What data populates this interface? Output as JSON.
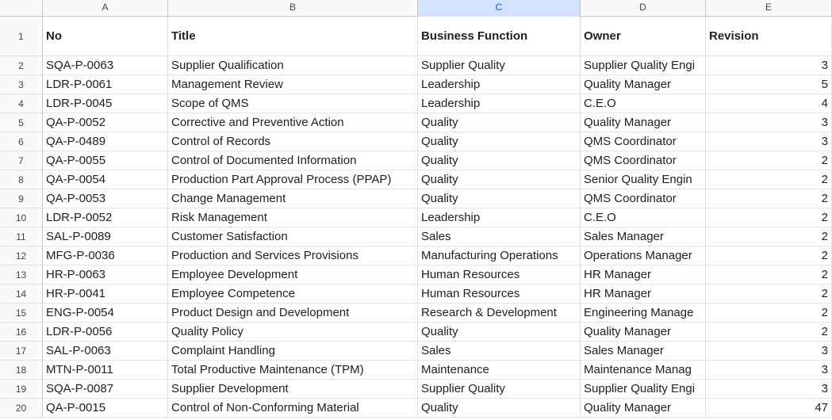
{
  "columns": [
    {
      "letter": "A",
      "selected": false
    },
    {
      "letter": "B",
      "selected": false
    },
    {
      "letter": "C",
      "selected": true
    },
    {
      "letter": "D",
      "selected": false
    },
    {
      "letter": "E",
      "selected": false
    }
  ],
  "header_row": {
    "row": "1",
    "no": "No",
    "title": "Title",
    "function": "Business Function",
    "owner": "Owner",
    "revision": "Revision"
  },
  "rows": [
    {
      "row": "2",
      "no": "SQA-P-0063",
      "title": "Supplier Qualification",
      "function": "Supplier Quality",
      "owner": "Supplier Quality Engi",
      "revision": "3"
    },
    {
      "row": "3",
      "no": "LDR-P-0061",
      "title": "Management Review",
      "function": "Leadership",
      "owner": "Quality Manager",
      "revision": "5"
    },
    {
      "row": "4",
      "no": "LDR-P-0045",
      "title": "Scope of QMS",
      "function": "Leadership",
      "owner": "C.E.O",
      "revision": "4"
    },
    {
      "row": "5",
      "no": "QA-P-0052",
      "title": "Corrective and Preventive Action",
      "function": "Quality",
      "owner": "Quality Manager",
      "revision": "3"
    },
    {
      "row": "6",
      "no": "QA-P-0489",
      "title": "Control of Records",
      "function": "Quality",
      "owner": "QMS Coordinator",
      "revision": "3"
    },
    {
      "row": "7",
      "no": "QA-P-0055",
      "title": "Control of Documented Information",
      "function": "Quality",
      "owner": "QMS Coordinator",
      "revision": "2"
    },
    {
      "row": "8",
      "no": "QA-P-0054",
      "title": "Production Part Approval Process (PPAP)",
      "function": "Quality",
      "owner": "Senior Quality Engin",
      "revision": "2"
    },
    {
      "row": "9",
      "no": "QA-P-0053",
      "title": "Change Management",
      "function": "Quality",
      "owner": "QMS Coordinator",
      "revision": "2"
    },
    {
      "row": "10",
      "no": "LDR-P-0052",
      "title": "Risk Management",
      "function": "Leadership",
      "owner": "C.E.O",
      "revision": "2"
    },
    {
      "row": "11",
      "no": "SAL-P-0089",
      "title": "Customer Satisfaction",
      "function": "Sales",
      "owner": "Sales Manager",
      "revision": "2"
    },
    {
      "row": "12",
      "no": "MFG-P-0036",
      "title": "Production and Services Provisions",
      "function": "Manufacturing Operations",
      "owner": "Operations Manager",
      "revision": "2"
    },
    {
      "row": "13",
      "no": "HR-P-0063",
      "title": "Employee Development",
      "function": "Human Resources",
      "owner": "HR Manager",
      "revision": "2"
    },
    {
      "row": "14",
      "no": "HR-P-0041",
      "title": "Employee Competence",
      "function": "Human Resources",
      "owner": "HR Manager",
      "revision": "2"
    },
    {
      "row": "15",
      "no": "ENG-P-0054",
      "title": "Product Design and Development",
      "function": "Research & Development",
      "owner": "Engineering Manage",
      "revision": "2"
    },
    {
      "row": "16",
      "no": "LDR-P-0056",
      "title": "Quality Policy",
      "function": "Quality",
      "owner": "Quality Manager",
      "revision": "2"
    },
    {
      "row": "17",
      "no": "SAL-P-0063",
      "title": "Complaint Handling",
      "function": "Sales",
      "owner": "Sales Manager",
      "revision": "3"
    },
    {
      "row": "18",
      "no": "MTN-P-0011",
      "title": "Total Productive Maintenance (TPM)",
      "function": "Maintenance",
      "owner": "Maintenance Manag",
      "revision": "3"
    },
    {
      "row": "19",
      "no": "SQA-P-0087",
      "title": "Supplier Development",
      "function": "Supplier Quality",
      "owner": "Supplier Quality Engi",
      "revision": "3"
    },
    {
      "row": "20",
      "no": "QA-P-0015",
      "title": "Control of Non-Conforming Material",
      "function": "Quality",
      "owner": "Quality Manager",
      "revision": "47"
    }
  ]
}
